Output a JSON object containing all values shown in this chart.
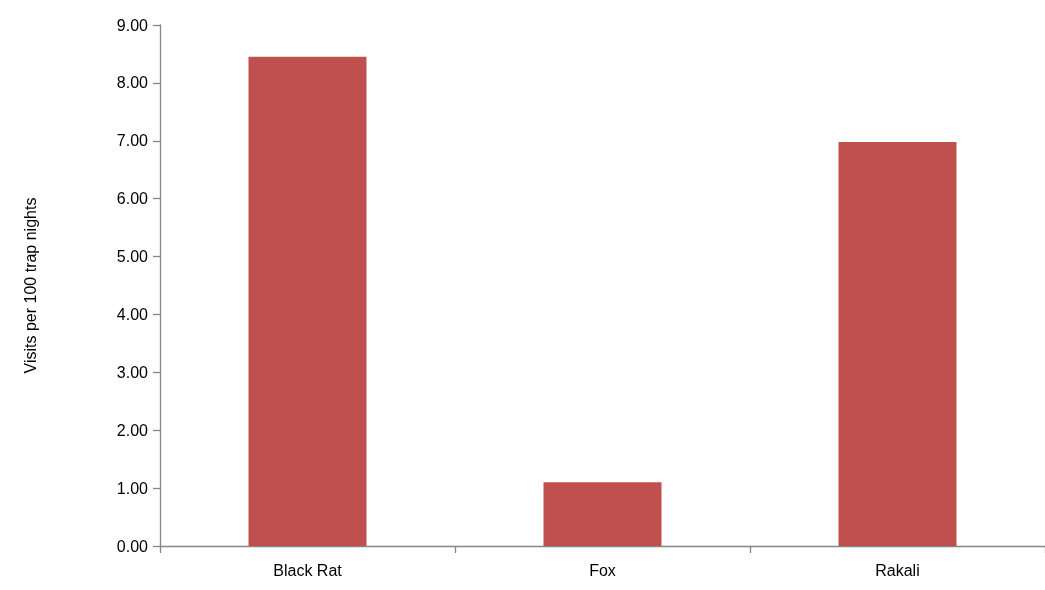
{
  "chart_data": {
    "type": "bar",
    "ylabel": "Visits per 100 trap nights",
    "categories": [
      "Black Rat",
      "Fox",
      "Rakali"
    ],
    "values": [
      8.45,
      1.1,
      6.98
    ],
    "color": "#c0504d",
    "ylim": [
      0,
      9
    ],
    "yticks": [
      {
        "value": 0,
        "label": "0.00"
      },
      {
        "value": 1,
        "label": "1.00"
      },
      {
        "value": 2,
        "label": "2.00"
      },
      {
        "value": 3,
        "label": "3.00"
      },
      {
        "value": 4,
        "label": "4.00"
      },
      {
        "value": 5,
        "label": "5.00"
      },
      {
        "value": 6,
        "label": "6.00"
      },
      {
        "value": 7,
        "label": "7.00"
      },
      {
        "value": 8,
        "label": "8.00"
      },
      {
        "value": 9,
        "label": "9.00"
      }
    ],
    "grid": false
  }
}
